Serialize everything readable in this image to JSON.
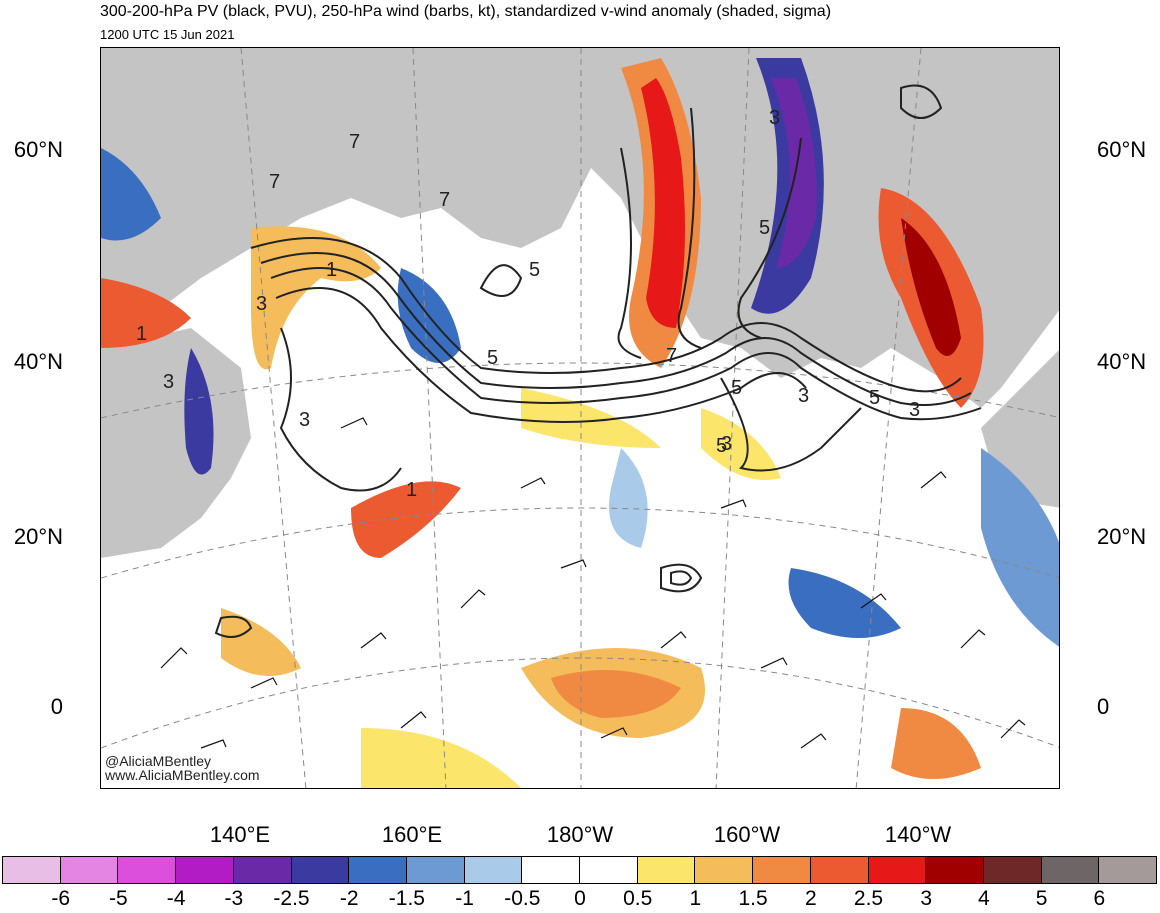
{
  "header": {
    "title": "300-200-hPa PV (black, PVU), 250-hPa wind (barbs, kt), standardized v-wind anomaly (shaded, sigma)",
    "valid_time": "1200 UTC 15 Jun 2021"
  },
  "map": {
    "projection": "polar stereographic",
    "latitude_labels": [
      "60°N",
      "40°N",
      "20°N",
      "0"
    ],
    "longitude_labels": [
      "140°E",
      "160°E",
      "180°W",
      "160°W",
      "140°W"
    ],
    "contour_labels": [
      "7",
      "7",
      "7",
      "1",
      "3",
      "1",
      "3",
      "3",
      "5",
      "5",
      "5",
      "5",
      "7",
      "3",
      "5",
      "3",
      "3",
      "3",
      "5",
      "1"
    ],
    "watermark": [
      "@AliciaMBentley",
      "www.AliciaMBentley.com"
    ]
  },
  "colorbar": {
    "labels": [
      "-6",
      "-5",
      "-4",
      "-3",
      "-2.5",
      "-2",
      "-1.5",
      "-1",
      "-0.5",
      "0",
      "0.5",
      "1",
      "1.5",
      "2",
      "2.5",
      "3",
      "4",
      "5",
      "6"
    ],
    "colors": [
      "#e8bde6",
      "#e485e4",
      "#dc4fdc",
      "#b11cc4",
      "#6a2aa8",
      "#3a3aa0",
      "#3a6ec0",
      "#6e9ad4",
      "#a9cae8",
      "#ffffff",
      "#ffffff",
      "#fbe56a",
      "#f4bc5a",
      "#f08a42",
      "#ec5a32",
      "#e61818",
      "#a00000",
      "#6e2828",
      "#6e6666",
      "#a49a9a"
    ]
  }
}
